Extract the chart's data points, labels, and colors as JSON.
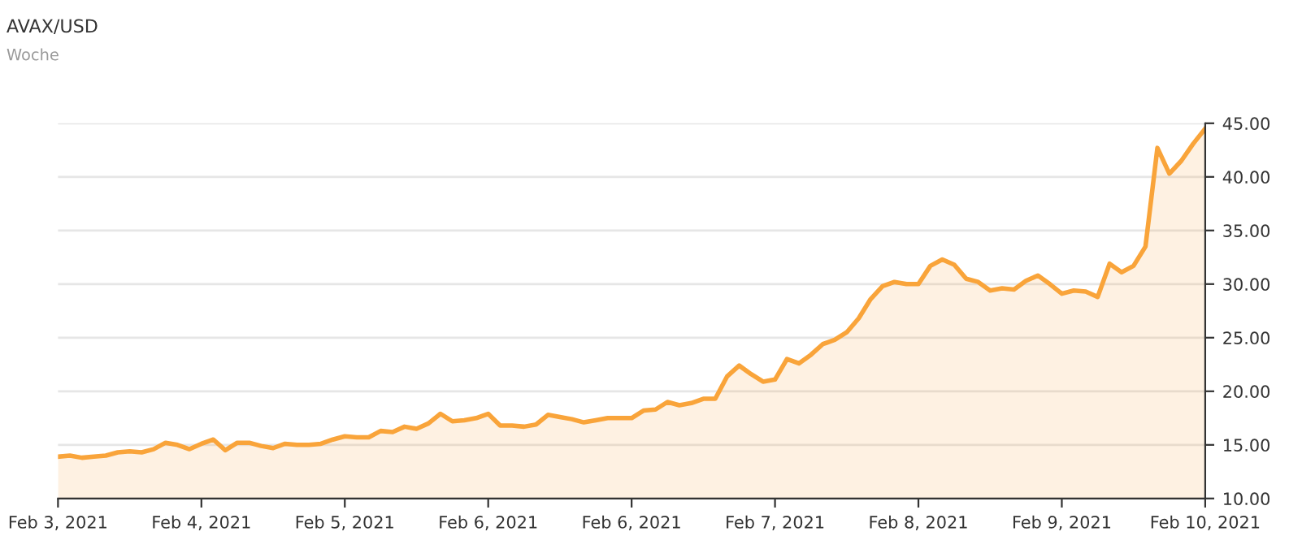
{
  "chart_data": {
    "type": "area",
    "title": "AVAX/USD",
    "subtitle": "Woche",
    "categories": [
      "Feb 3, 2021",
      null,
      null,
      null,
      null,
      null,
      null,
      null,
      null,
      null,
      null,
      null,
      "Feb 4, 2021",
      null,
      null,
      null,
      null,
      null,
      null,
      null,
      null,
      null,
      null,
      null,
      "Feb 5, 2021",
      null,
      null,
      null,
      null,
      null,
      null,
      null,
      null,
      null,
      null,
      null,
      "Feb 6, 2021",
      null,
      null,
      null,
      null,
      null,
      null,
      null,
      null,
      null,
      null,
      null,
      "Feb 6, 2021",
      null,
      null,
      null,
      null,
      null,
      null,
      null,
      null,
      null,
      null,
      null,
      "Feb 7, 2021",
      null,
      null,
      null,
      null,
      null,
      null,
      null,
      null,
      null,
      null,
      null,
      "Feb 8, 2021",
      null,
      null,
      null,
      null,
      null,
      null,
      null,
      null,
      null,
      null,
      null,
      "Feb 9, 2021",
      null,
      null,
      null,
      null,
      null,
      null,
      null,
      null,
      null,
      null,
      null,
      "Feb 10, 2021"
    ],
    "ylim": [
      10,
      45
    ],
    "yticks": [
      {
        "value": 10,
        "label": "10.00"
      },
      {
        "value": 15,
        "label": "15.00"
      },
      {
        "value": 20,
        "label": "20.00"
      },
      {
        "value": 25,
        "label": "25.00"
      },
      {
        "value": 30,
        "label": "30.00"
      },
      {
        "value": 35,
        "label": "35.00"
      },
      {
        "value": 40,
        "label": "40.00"
      },
      {
        "value": 45,
        "label": "45.00"
      }
    ],
    "grid": "y",
    "series": [
      {
        "color": "#f9a43a",
        "values": [
          13.9,
          14.0,
          13.8,
          13.9,
          14.0,
          14.3,
          14.4,
          14.3,
          14.6,
          15.2,
          15.0,
          14.6,
          15.1,
          15.5,
          14.5,
          15.2,
          15.2,
          14.9,
          14.7,
          15.1,
          15.0,
          15.0,
          15.1,
          15.5,
          15.8,
          15.7,
          15.7,
          16.3,
          16.2,
          16.7,
          16.5,
          17.0,
          17.9,
          17.2,
          17.3,
          17.5,
          17.9,
          16.8,
          16.8,
          16.7,
          16.9,
          17.8,
          17.6,
          17.4,
          17.1,
          17.3,
          17.5,
          17.5,
          17.5,
          18.2,
          18.3,
          19.0,
          18.7,
          18.9,
          19.3,
          19.3,
          21.4,
          22.4,
          21.6,
          20.9,
          21.1,
          23.0,
          22.6,
          23.4,
          24.4,
          24.8,
          25.5,
          26.8,
          28.6,
          29.8,
          30.2,
          30.0,
          30.0,
          31.7,
          32.3,
          31.8,
          30.5,
          30.2,
          29.4,
          29.6,
          29.5,
          30.3,
          30.8,
          30.0,
          29.1,
          29.4,
          29.3,
          28.8,
          31.9,
          31.1,
          31.7,
          33.5,
          42.7,
          40.3,
          41.5,
          43.1,
          44.5
        ]
      }
    ]
  }
}
